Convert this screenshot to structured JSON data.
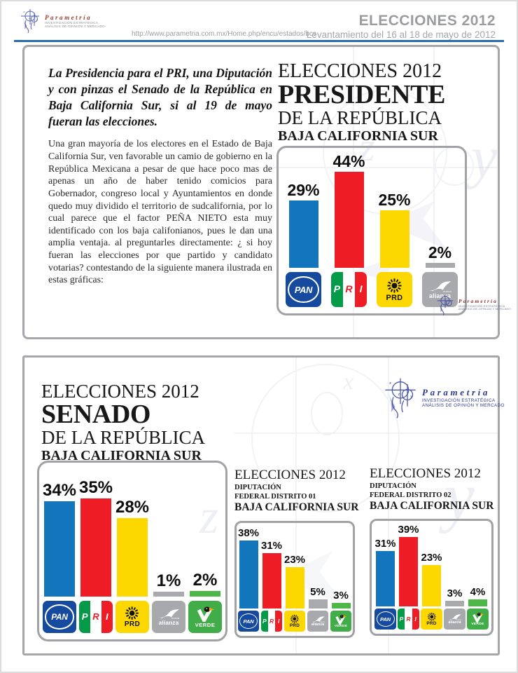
{
  "header": {
    "url": "http://www.parametria.com.mx/Home.php/encu/estados/bcs",
    "title": "ELECCIONES 2012",
    "subtitle": "Levantamiento del 16 al 18 de mayo de 2012"
  },
  "branding": {
    "name": "Parametría",
    "tagline1": "Investigación estratégica",
    "tagline2": "Análisis de opinión y mercado"
  },
  "article": {
    "intro": "La Presidencia para el PRI, una Diputación y con pinzas el Senado de la República en Baja California Sur, si al 19 de mayo fueran las elecciones.",
    "body": "Una gran mayoría de los electores en el Estado de Baja California Sur, ven favorable un camio de gobierno en la República Mexicana a pesar de que hace poco mas de apenas un año de haber tenido comicios para Gobernador, congreso local y Ayuntamientos en donde quedo muy dividido el territorio de sudcalifornia, por lo cual parece que el factor PEÑA NIETO esta muy identificado con los baja califonianos, pues le dan una amplia ventaja. al preguntarles directamente: ¿ si hoy fueran las elecciones por que partido y candidato votarias? contestando de la siguiente manera ilustrada en estas gráficas:"
  },
  "sections": {
    "president": {
      "line1": "ELECCIONES 2012",
      "line2": "PRESIDENTE",
      "line3": "DE LA REPÚBLICA",
      "line4": "BAJA CALIFORNIA SUR"
    },
    "senate": {
      "line1": "ELECCIONES 2012",
      "line2": "SENADO",
      "line3": "DE LA REPÚBLICA",
      "line4": "BAJA CALIFORNIA SUR"
    },
    "district1": {
      "line1": "ELECCIONES 2012",
      "line2": "DIPUTACIÓN",
      "line3": "FEDERAL DISTRITO 01",
      "line4": "BAJA CALIFORNIA SUR"
    },
    "district2": {
      "line1": "ELECCIONES 2012",
      "line2": "DIPUTACIÓN",
      "line3": "FEDERAL DISTRITO 02",
      "line4": "BAJA CALIFORNIA SUR"
    }
  },
  "parties": {
    "pan": {
      "label": "PAN",
      "color": "#1375bc"
    },
    "pri": {
      "label": "PRI",
      "letters": [
        "P",
        "R",
        "I"
      ],
      "color": "#ee1c25"
    },
    "prd": {
      "label": "PRD",
      "color": "#fdd700"
    },
    "alianza": {
      "label": "alianza",
      "small_label": "nueva",
      "color": "#a8aaad"
    },
    "verde": {
      "label": "VERDE",
      "color": "#4db848"
    }
  },
  "chart_data": [
    {
      "id": "president",
      "type": "bar",
      "title": "ELECCIONES 2012 — PRESIDENTE DE LA REPÚBLICA — BAJA CALIFORNIA SUR",
      "categories": [
        "PAN",
        "PRI",
        "PRD",
        "Nueva Alianza"
      ],
      "values": [
        29,
        44,
        25,
        2
      ],
      "labels": [
        "29%",
        "44%",
        "25%",
        "2%"
      ],
      "colors": [
        "#1375bc",
        "#ee1c25",
        "#fdd700",
        "#a8aaad"
      ],
      "ylim": [
        0,
        50
      ],
      "grid": false,
      "value_labels_position": "above-bars"
    },
    {
      "id": "senate",
      "type": "bar",
      "title": "ELECCIONES 2012 — SENADO DE LA REPÚBLICA — BAJA CALIFORNIA SUR",
      "categories": [
        "PAN",
        "PRI",
        "PRD",
        "Nueva Alianza",
        "Partido Verde"
      ],
      "values": [
        34,
        35,
        28,
        1,
        2
      ],
      "labels": [
        "34%",
        "35%",
        "28%",
        "1%",
        "2%"
      ],
      "colors": [
        "#1375bc",
        "#ee1c25",
        "#fdd700",
        "#a8aaad",
        "#4db848"
      ],
      "ylim": [
        0,
        40
      ],
      "grid": false,
      "value_labels_position": "above-bars"
    },
    {
      "id": "district1",
      "type": "bar",
      "title": "ELECCIONES 2012 — DIPUTACIÓN FEDERAL DISTRITO 01 — BAJA CALIFORNIA SUR",
      "categories": [
        "PAN",
        "PRI",
        "PRD",
        "Nueva Alianza",
        "Partido Verde"
      ],
      "values": [
        38,
        31,
        23,
        5,
        3
      ],
      "labels": [
        "38%",
        "31%",
        "23%",
        "5%",
        "3%"
      ],
      "colors": [
        "#1375bc",
        "#ee1c25",
        "#fdd700",
        "#a8aaad",
        "#4db848"
      ],
      "ylim": [
        0,
        45
      ],
      "grid": false,
      "value_labels_position": "above-bars"
    },
    {
      "id": "district2",
      "type": "bar",
      "title": "ELECCIONES 2012 — DIPUTACIÓN FEDERAL DISTRITO 02 — BAJA CALIFORNIA SUR",
      "categories": [
        "PAN",
        "PRI",
        "PRD",
        "Nueva Alianza",
        "Partido Verde"
      ],
      "values": [
        31,
        39,
        23,
        3,
        4
      ],
      "labels": [
        "31%",
        "39%",
        "23%",
        "3%",
        "4%"
      ],
      "colors": [
        "#1375bc",
        "#ee1c25",
        "#fdd700",
        "#a8aaad",
        "#4db848"
      ],
      "ylim": [
        0,
        45
      ],
      "grid": false,
      "value_labels_position": "above-bars"
    }
  ]
}
